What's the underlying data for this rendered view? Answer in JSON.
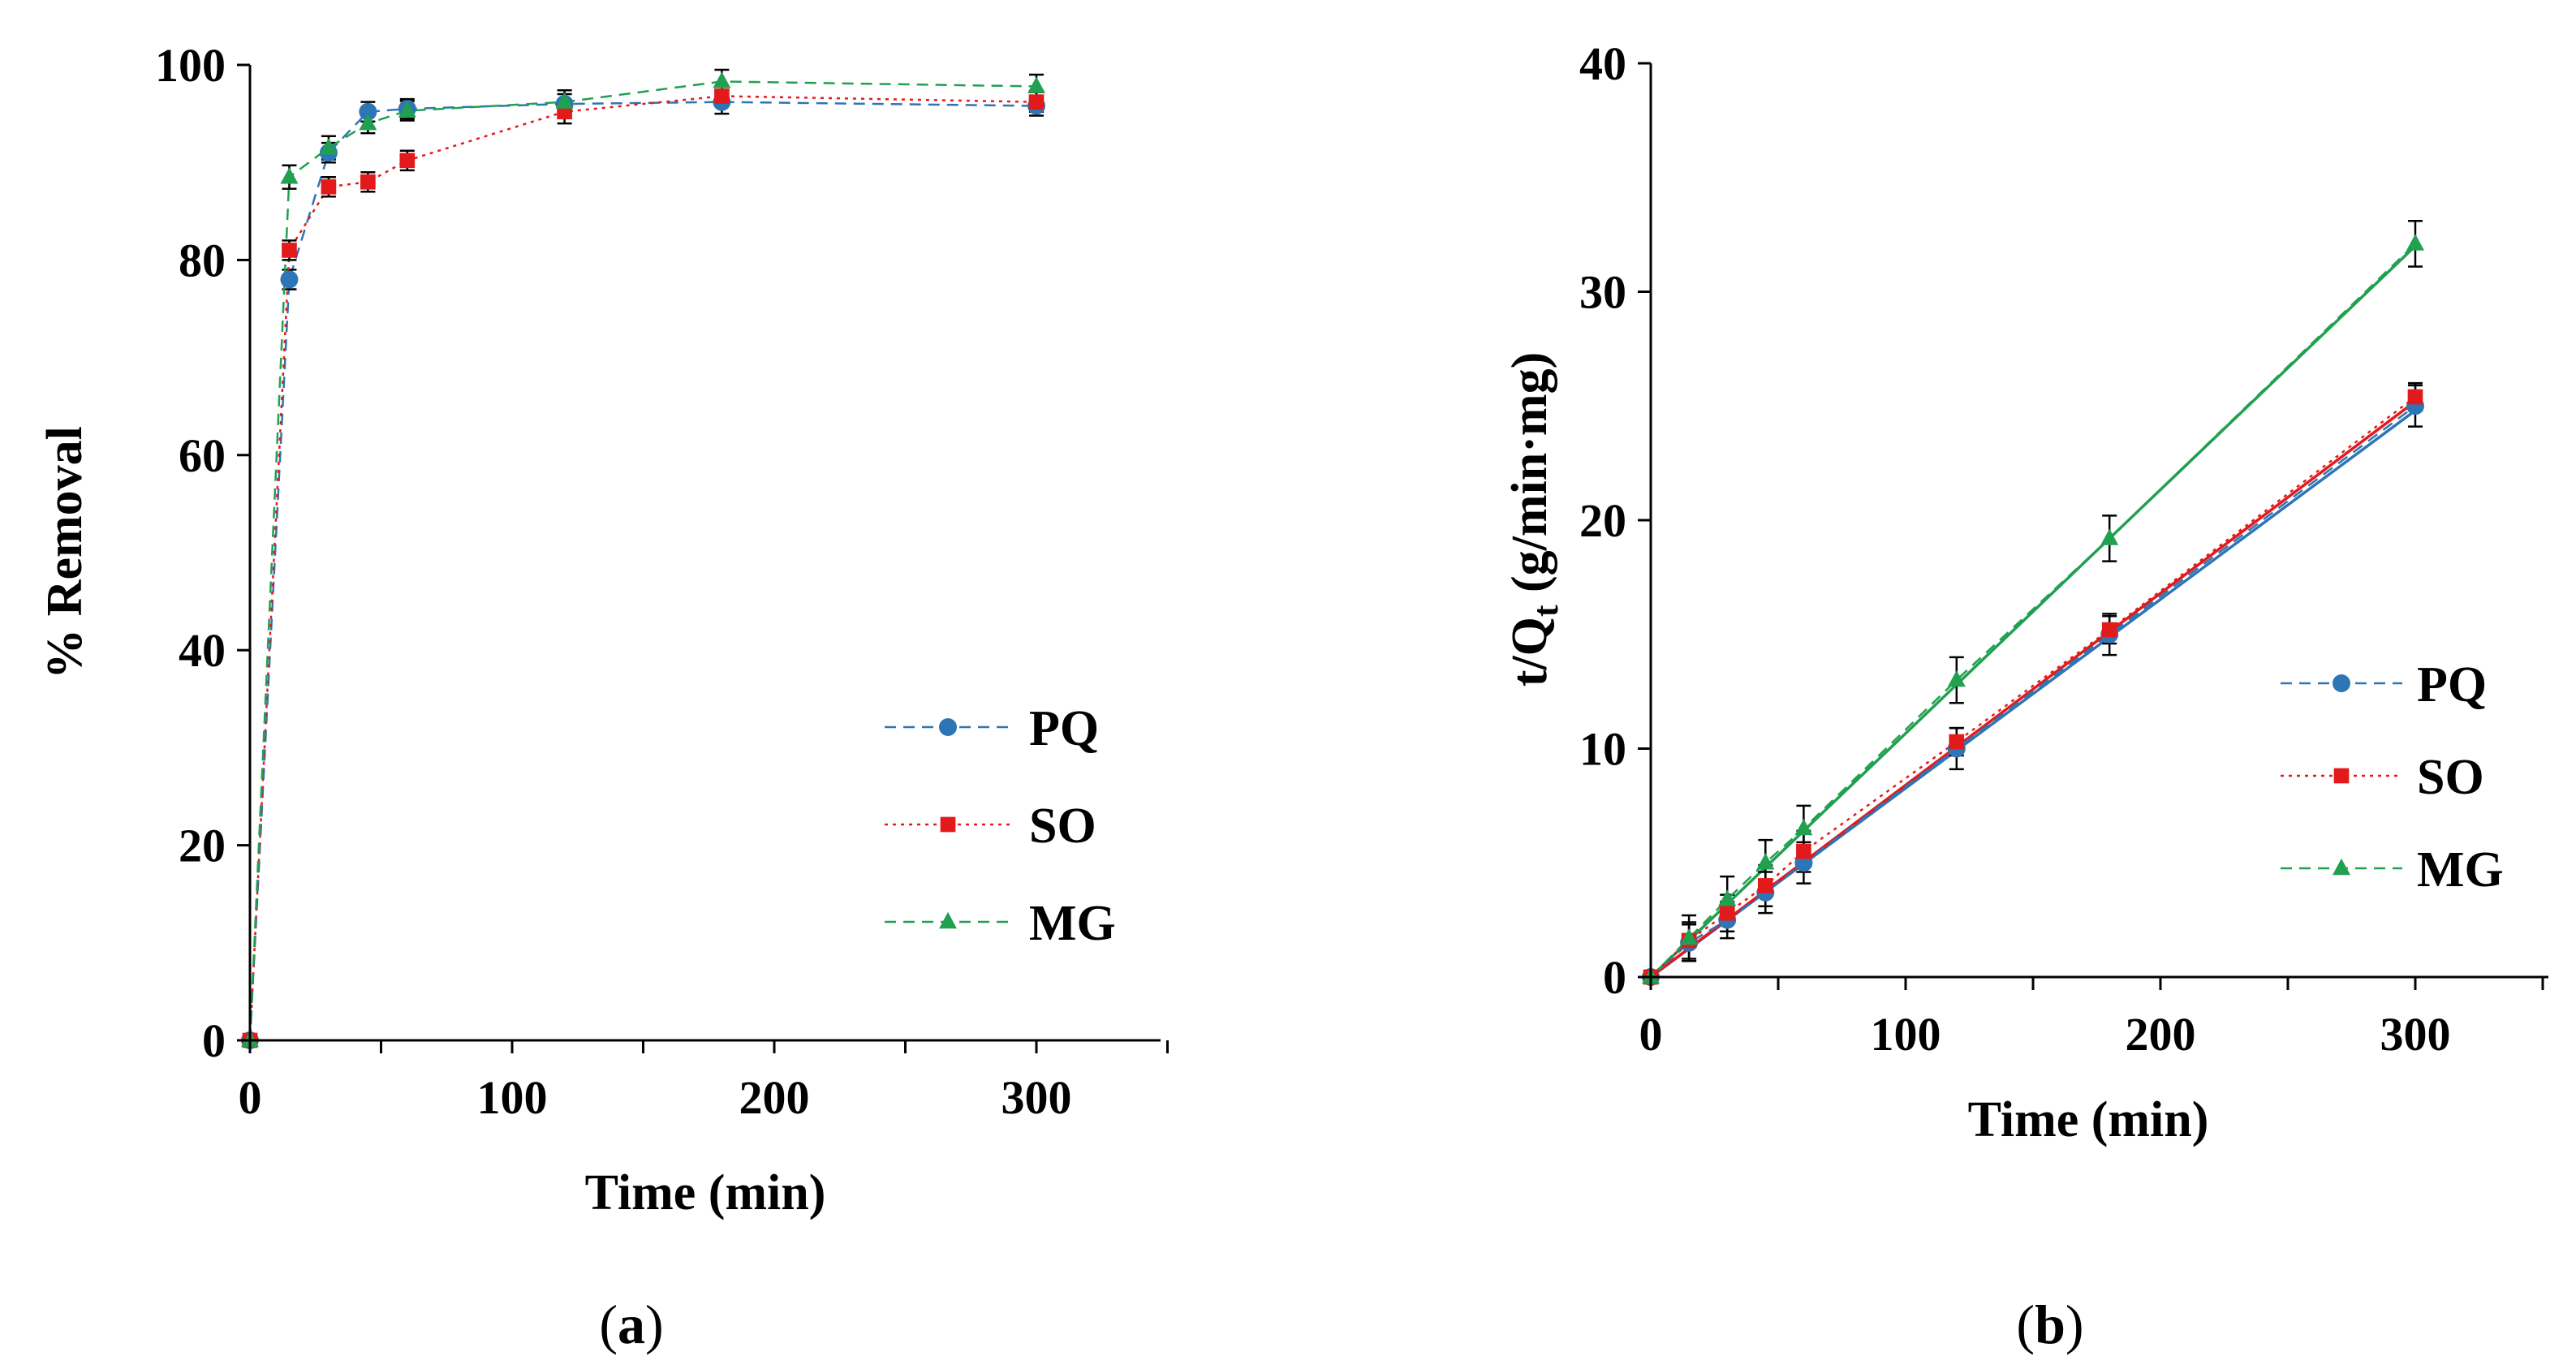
{
  "colors": {
    "PQ": "#2e75b6",
    "SO": "#e31a1c",
    "MG": "#21a050",
    "axis": "#000000"
  },
  "panels": {
    "a": {
      "open": "(",
      "letter": "a",
      "close": ")"
    },
    "b": {
      "open": "(",
      "letter": "b",
      "close": ")"
    }
  },
  "chart_data": [
    {
      "id": "a",
      "type": "line",
      "title": "",
      "xlabel": "Time (min)",
      "ylabel": "% Removal",
      "xlim": [
        0,
        350
      ],
      "ylim": [
        0,
        100
      ],
      "xticks": [
        0,
        100,
        200,
        300
      ],
      "yticks": [
        0,
        20,
        40,
        60,
        80,
        100
      ],
      "grid": false,
      "legend_position": "lower-right",
      "x": [
        0,
        15,
        30,
        45,
        60,
        120,
        180,
        300
      ],
      "series": [
        {
          "name": "PQ",
          "marker": "circle",
          "linestyle": "dashed",
          "color": "#2e75b6",
          "values": [
            0,
            78,
            91,
            95.2,
            95.5,
            96,
            96.2,
            95.8
          ],
          "errors": [
            0,
            1,
            1,
            1,
            1,
            1,
            1.2,
            1
          ]
        },
        {
          "name": "SO",
          "marker": "square",
          "linestyle": "dotted",
          "color": "#e31a1c",
          "values": [
            0,
            81,
            87.5,
            88,
            90.2,
            95.2,
            96.8,
            96.2
          ],
          "errors": [
            0,
            1,
            1,
            1,
            1,
            1.2,
            1,
            1
          ]
        },
        {
          "name": "MG",
          "marker": "triangle",
          "linestyle": "dashed",
          "color": "#21a050",
          "values": [
            0,
            88.5,
            91.5,
            94,
            95.3,
            96.2,
            98.3,
            97.8
          ],
          "errors": [
            0,
            1.2,
            1.2,
            1,
            1,
            1.2,
            1.2,
            1.2
          ]
        }
      ]
    },
    {
      "id": "b",
      "type": "line",
      "title": "",
      "xlabel": "Time (min)",
      "ylabel_main": "t/Q",
      "ylabel_sub": "t",
      "ylabel_rest": " (g/min·mg)",
      "xlim": [
        0,
        350
      ],
      "ylim": [
        0,
        40
      ],
      "xticks": [
        0,
        100,
        200,
        300
      ],
      "yticks": [
        0,
        10,
        20,
        30,
        40
      ],
      "grid": false,
      "legend_position": "right",
      "x": [
        0,
        15,
        30,
        45,
        60,
        120,
        180,
        300
      ],
      "series": [
        {
          "name": "PQ",
          "marker": "circle",
          "linestyle": "dashed",
          "color": "#2e75b6",
          "values": [
            0,
            1.5,
            2.5,
            3.7,
            5,
            10,
            15,
            25
          ],
          "errors": [
            0,
            0.8,
            0.8,
            0.9,
            0.9,
            0.9,
            0.9,
            0.9
          ]
        },
        {
          "name": "SO",
          "marker": "square",
          "linestyle": "dotted",
          "color": "#e31a1c",
          "values": [
            0,
            1.6,
            2.8,
            4,
            5.5,
            10.3,
            15.2,
            25.4
          ],
          "errors": [
            0,
            0.8,
            0.8,
            0.9,
            0.9,
            0.6,
            0.6,
            0.6
          ]
        },
        {
          "name": "MG",
          "marker": "triangle",
          "linestyle": "dashed",
          "color": "#21a050",
          "values": [
            0,
            1.7,
            3.4,
            5,
            6.5,
            13,
            19.2,
            32.1
          ],
          "errors": [
            0,
            1,
            1,
            1,
            1,
            1,
            1,
            1
          ]
        }
      ],
      "trendlines": [
        {
          "name": "PQ",
          "color": "#2e75b6",
          "x": [
            0,
            300
          ],
          "y": [
            0,
            24.8
          ]
        },
        {
          "name": "SO",
          "color": "#e31a1c",
          "x": [
            0,
            300
          ],
          "y": [
            0,
            25.2
          ]
        },
        {
          "name": "MG",
          "color": "#21a050",
          "x": [
            0,
            300
          ],
          "y": [
            0,
            32.0
          ]
        }
      ]
    }
  ]
}
